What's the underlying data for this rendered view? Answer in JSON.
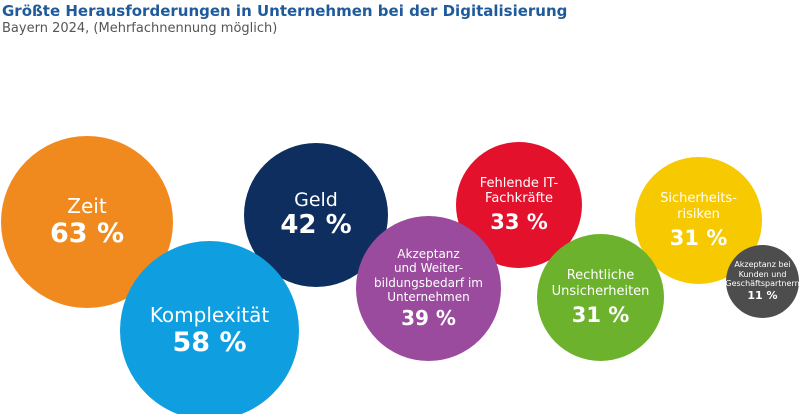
{
  "title": "Größte Herausforderungen in Unternehmen bei der Digitalisierung",
  "subtitle": "Bayern 2024, (Mehrfachnennung möglich)",
  "chart_data": {
    "type": "bubble",
    "title": "Größte Herausforderungen in Unternehmen bei der Digitalisierung",
    "subtitle": "Bayern 2024, (Mehrfachnennung möglich)",
    "unit": "%",
    "items": [
      {
        "label": "Zeit",
        "value": 63,
        "value_text": "63 %",
        "color": "#f08a1f"
      },
      {
        "label": "Komplexität",
        "value": 58,
        "value_text": "58 %",
        "color": "#0f9fe0"
      },
      {
        "label": "Geld",
        "value": 42,
        "value_text": "42 %",
        "color": "#0d2e5e"
      },
      {
        "label": "Akzeptanz und Weiterbildungsbedarf im Unternehmen",
        "value": 39,
        "value_text": "39 %",
        "color": "#9a4b9e"
      },
      {
        "label": "Fehlende IT-Fachkräfte",
        "value": 33,
        "value_text": "33 %",
        "color": "#e3112c"
      },
      {
        "label": "Rechtliche Unsicherheiten",
        "value": 31,
        "value_text": "31 %",
        "color": "#6db22c"
      },
      {
        "label": "Sicherheitsrisiken",
        "value": 31,
        "value_text": "31 %",
        "color": "#f7c900"
      },
      {
        "label": "Akzeptanz bei Kunden und Geschäftspartnern",
        "value": 11,
        "value_text": "11 %",
        "color": "#4d4d4d"
      }
    ]
  },
  "bubble_labels": [
    "Zeit",
    "Komplexität",
    "Geld",
    "Akzeptanz\nund Weiter-\nbildungsbedarf im\nUnternehmen",
    "Fehlende IT-\nFachkräfte",
    "Rechtliche\nUnsicherheiten",
    "Sicherheits-\nrisiken",
    "Akzeptanz bei\nKunden und\nGeschäftspartnern"
  ]
}
